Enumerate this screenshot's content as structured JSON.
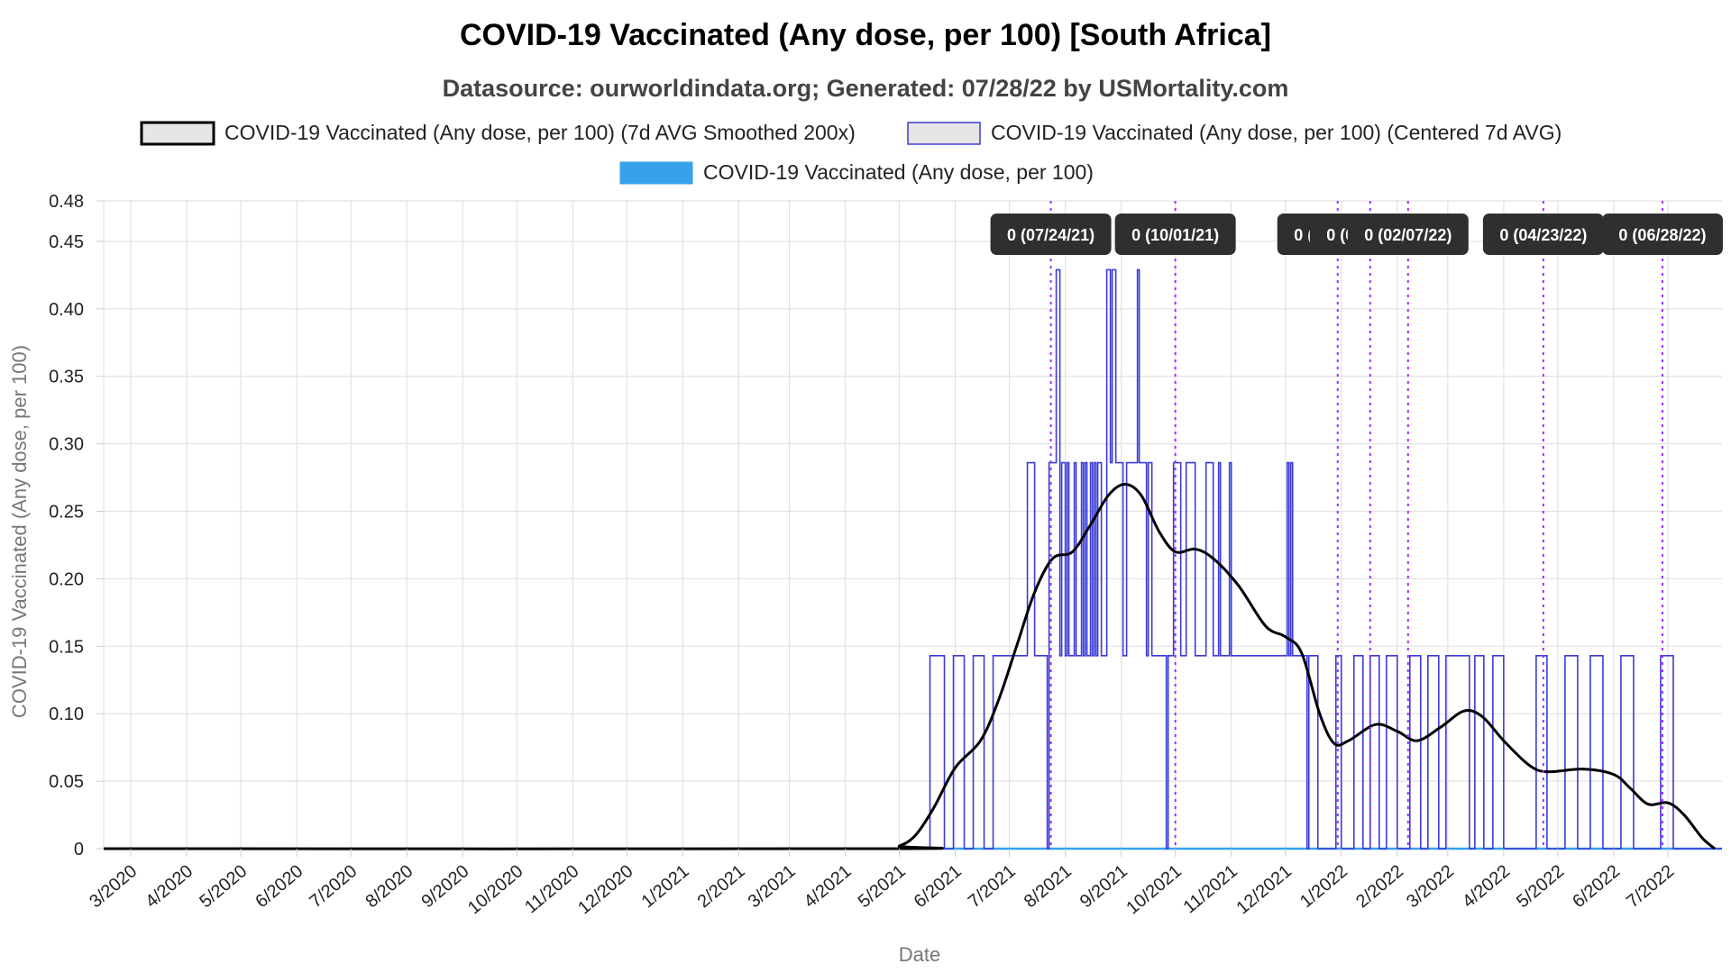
{
  "chart_data": {
    "type": "line",
    "title": "COVID-19 Vaccinated (Any dose, per 100) [South Africa]",
    "subtitle": "Datasource: ourworldindata.org; Generated: 07/28/22 by USMortality.com",
    "xlabel": "Date",
    "ylabel": "COVID-19 Vaccinated (Any dose, per 100)",
    "ylim": [
      0,
      0.48
    ],
    "xlim": [
      "2020-02-15",
      "2022-07-31"
    ],
    "yticks": [
      "0",
      "0.05",
      "0.10",
      "0.15",
      "0.20",
      "0.25",
      "0.30",
      "0.35",
      "0.40",
      "0.45",
      "0.48"
    ],
    "ytick_values": [
      0,
      0.05,
      0.1,
      0.15,
      0.2,
      0.25,
      0.3,
      0.35,
      0.4,
      0.45,
      0.48
    ],
    "xticks": [
      "3/2020",
      "4/2020",
      "5/2020",
      "6/2020",
      "7/2020",
      "8/2020",
      "9/2020",
      "10/2020",
      "11/2020",
      "12/2020",
      "1/2021",
      "2/2021",
      "3/2021",
      "4/2021",
      "5/2021",
      "6/2021",
      "7/2021",
      "8/2021",
      "9/2021",
      "10/2021",
      "11/2021",
      "12/2021",
      "1/2022",
      "2/2022",
      "3/2022",
      "4/2022",
      "5/2022",
      "6/2022",
      "7/2022"
    ],
    "xtick_dates": [
      "2020-03-01",
      "2020-04-01",
      "2020-05-01",
      "2020-06-01",
      "2020-07-01",
      "2020-08-01",
      "2020-09-01",
      "2020-10-01",
      "2020-11-01",
      "2020-12-01",
      "2021-01-01",
      "2021-02-01",
      "2021-03-01",
      "2021-04-01",
      "2021-05-01",
      "2021-06-01",
      "2021-07-01",
      "2021-08-01",
      "2021-09-01",
      "2021-10-01",
      "2021-11-01",
      "2021-12-01",
      "2022-01-01",
      "2022-02-01",
      "2022-03-01",
      "2022-04-01",
      "2022-05-01",
      "2022-06-01",
      "2022-07-01"
    ],
    "grid": true,
    "legend_position": "top-center",
    "series": [
      {
        "name": "COVID-19 Vaccinated (Any dose, per 100) (7d AVG Smoothed 200x)",
        "color": "#000000",
        "fill": "#e6e6e6",
        "points": [
          [
            "2020-02-15",
            0
          ],
          [
            "2021-04-20",
            0
          ],
          [
            "2021-05-01",
            0.002
          ],
          [
            "2021-05-10",
            0.01
          ],
          [
            "2021-05-20",
            0.03
          ],
          [
            "2021-06-01",
            0.06
          ],
          [
            "2021-06-15",
            0.08
          ],
          [
            "2021-06-25",
            0.11
          ],
          [
            "2021-07-05",
            0.15
          ],
          [
            "2021-07-15",
            0.19
          ],
          [
            "2021-07-25",
            0.215
          ],
          [
            "2021-08-05",
            0.22
          ],
          [
            "2021-08-15",
            0.24
          ],
          [
            "2021-08-25",
            0.262
          ],
          [
            "2021-09-03",
            0.27
          ],
          [
            "2021-09-12",
            0.262
          ],
          [
            "2021-09-22",
            0.235
          ],
          [
            "2021-10-01",
            0.22
          ],
          [
            "2021-10-12",
            0.222
          ],
          [
            "2021-10-22",
            0.215
          ],
          [
            "2021-11-05",
            0.195
          ],
          [
            "2021-11-20",
            0.165
          ],
          [
            "2021-12-01",
            0.157
          ],
          [
            "2021-12-10",
            0.145
          ],
          [
            "2021-12-20",
            0.1
          ],
          [
            "2021-12-28",
            0.078
          ],
          [
            "2022-01-05",
            0.08
          ],
          [
            "2022-01-20",
            0.092
          ],
          [
            "2022-02-01",
            0.087
          ],
          [
            "2022-02-12",
            0.08
          ],
          [
            "2022-02-25",
            0.09
          ],
          [
            "2022-03-10",
            0.102
          ],
          [
            "2022-03-20",
            0.098
          ],
          [
            "2022-04-01",
            0.08
          ],
          [
            "2022-04-15",
            0.062
          ],
          [
            "2022-04-25",
            0.057
          ],
          [
            "2022-05-15",
            0.059
          ],
          [
            "2022-06-01",
            0.055
          ],
          [
            "2022-06-10",
            0.045
          ],
          [
            "2022-06-20",
            0.033
          ],
          [
            "2022-07-01",
            0.034
          ],
          [
            "2022-07-10",
            0.025
          ],
          [
            "2022-07-20",
            0.008
          ],
          [
            "2022-07-27",
            0
          ]
        ]
      },
      {
        "name": "COVID-19 Vaccinated (Any dose, per 100) (Centered 7d AVG)",
        "color": "#3b3bd9",
        "fill": "#e6e6e6",
        "type": "step",
        "points": [
          [
            "2020-02-15",
            0
          ],
          [
            "2021-05-17",
            0
          ],
          [
            "2021-05-18",
            0.143
          ],
          [
            "2021-05-25",
            0.143
          ],
          [
            "2021-05-26",
            0
          ],
          [
            "2021-05-30",
            0
          ],
          [
            "2021-05-31",
            0.143
          ],
          [
            "2021-06-05",
            0.143
          ],
          [
            "2021-06-06",
            0
          ],
          [
            "2021-06-10",
            0
          ],
          [
            "2021-06-11",
            0.143
          ],
          [
            "2021-06-16",
            0.143
          ],
          [
            "2021-06-17",
            0
          ],
          [
            "2021-06-21",
            0
          ],
          [
            "2021-06-22",
            0.143
          ],
          [
            "2021-07-10",
            0.143
          ],
          [
            "2021-07-11",
            0.286
          ],
          [
            "2021-07-14",
            0.286
          ],
          [
            "2021-07-15",
            0.143
          ],
          [
            "2021-07-21",
            0.143
          ],
          [
            "2021-07-22",
            0
          ],
          [
            "2021-07-23",
            0.286
          ],
          [
            "2021-07-26",
            0.286
          ],
          [
            "2021-07-27",
            0.429
          ],
          [
            "2021-07-28",
            0.429
          ],
          [
            "2021-07-29",
            0.143
          ],
          [
            "2021-07-30",
            0.286
          ],
          [
            "2021-07-31",
            0.286
          ],
          [
            "2021-08-01",
            0.143
          ],
          [
            "2021-08-02",
            0.286
          ],
          [
            "2021-08-03",
            0.143
          ],
          [
            "2021-08-05",
            0.143
          ],
          [
            "2021-08-06",
            0.286
          ],
          [
            "2021-08-07",
            0.143
          ],
          [
            "2021-08-09",
            0.143
          ],
          [
            "2021-08-10",
            0.286
          ],
          [
            "2021-08-11",
            0.143
          ],
          [
            "2021-08-12",
            0.286
          ],
          [
            "2021-08-13",
            0.143
          ],
          [
            "2021-08-15",
            0.286
          ],
          [
            "2021-08-16",
            0.143
          ],
          [
            "2021-08-17",
            0.286
          ],
          [
            "2021-08-18",
            0.143
          ],
          [
            "2021-08-19",
            0.286
          ],
          [
            "2021-08-20",
            0.286
          ],
          [
            "2021-08-21",
            0.143
          ],
          [
            "2021-08-23",
            0.143
          ],
          [
            "2021-08-24",
            0.429
          ],
          [
            "2021-08-25",
            0.429
          ],
          [
            "2021-08-26",
            0.286
          ],
          [
            "2021-08-27",
            0.429
          ],
          [
            "2021-08-28",
            0.429
          ],
          [
            "2021-08-29",
            0.286
          ],
          [
            "2021-09-01",
            0.286
          ],
          [
            "2021-09-02",
            0.143
          ],
          [
            "2021-09-03",
            0.143
          ],
          [
            "2021-09-04",
            0.286
          ],
          [
            "2021-09-09",
            0.286
          ],
          [
            "2021-09-10",
            0.429
          ],
          [
            "2021-09-11",
            0.286
          ],
          [
            "2021-09-14",
            0.286
          ],
          [
            "2021-09-15",
            0.143
          ],
          [
            "2021-09-16",
            0.286
          ],
          [
            "2021-09-17",
            0.286
          ],
          [
            "2021-09-18",
            0.143
          ],
          [
            "2021-09-25",
            0.143
          ],
          [
            "2021-09-26",
            0
          ],
          [
            "2021-09-27",
            0.143
          ],
          [
            "2021-09-29",
            0.143
          ],
          [
            "2021-09-30",
            0.286
          ],
          [
            "2021-10-03",
            0.286
          ],
          [
            "2021-10-04",
            0.143
          ],
          [
            "2021-10-06",
            0.143
          ],
          [
            "2021-10-07",
            0.286
          ],
          [
            "2021-10-11",
            0.286
          ],
          [
            "2021-10-12",
            0.143
          ],
          [
            "2021-10-17",
            0.143
          ],
          [
            "2021-10-18",
            0.286
          ],
          [
            "2021-10-21",
            0.286
          ],
          [
            "2021-10-22",
            0.143
          ],
          [
            "2021-10-24",
            0.143
          ],
          [
            "2021-10-25",
            0.286
          ],
          [
            "2021-10-26",
            0.143
          ],
          [
            "2021-10-30",
            0.143
          ],
          [
            "2021-10-31",
            0.286
          ],
          [
            "2021-11-01",
            0.143
          ],
          [
            "2021-12-01",
            0.143
          ],
          [
            "2021-12-02",
            0.286
          ],
          [
            "2021-12-03",
            0.143
          ],
          [
            "2021-12-04",
            0.286
          ],
          [
            "2021-12-05",
            0.143
          ],
          [
            "2021-12-12",
            0.143
          ],
          [
            "2021-12-13",
            0
          ],
          [
            "2021-12-14",
            0.143
          ],
          [
            "2021-12-18",
            0.143
          ],
          [
            "2021-12-19",
            0
          ],
          [
            "2021-12-28",
            0
          ],
          [
            "2021-12-29",
            0.143
          ],
          [
            "2021-12-31",
            0.143
          ],
          [
            "2022-01-01",
            0
          ],
          [
            "2022-01-07",
            0
          ],
          [
            "2022-01-08",
            0.143
          ],
          [
            "2022-01-12",
            0.143
          ],
          [
            "2022-01-13",
            0
          ],
          [
            "2022-01-16",
            0
          ],
          [
            "2022-01-17",
            0.143
          ],
          [
            "2022-01-21",
            0.143
          ],
          [
            "2022-01-22",
            0
          ],
          [
            "2022-01-25",
            0
          ],
          [
            "2022-01-26",
            0.143
          ],
          [
            "2022-01-31",
            0.143
          ],
          [
            "2022-02-01",
            0
          ],
          [
            "2022-02-07",
            0
          ],
          [
            "2022-02-08",
            0.143
          ],
          [
            "2022-02-13",
            0.143
          ],
          [
            "2022-02-14",
            0
          ],
          [
            "2022-02-17",
            0
          ],
          [
            "2022-02-18",
            0.143
          ],
          [
            "2022-02-23",
            0.143
          ],
          [
            "2022-02-24",
            0
          ],
          [
            "2022-02-27",
            0
          ],
          [
            "2022-02-28",
            0.143
          ],
          [
            "2022-03-12",
            0.143
          ],
          [
            "2022-03-13",
            0
          ],
          [
            "2022-03-15",
            0
          ],
          [
            "2022-03-16",
            0.143
          ],
          [
            "2022-03-20",
            0.143
          ],
          [
            "2022-03-21",
            0
          ],
          [
            "2022-03-25",
            0
          ],
          [
            "2022-03-26",
            0.143
          ],
          [
            "2022-03-31",
            0.143
          ],
          [
            "2022-04-01",
            0
          ],
          [
            "2022-04-18",
            0
          ],
          [
            "2022-04-19",
            0.143
          ],
          [
            "2022-04-24",
            0.143
          ],
          [
            "2022-04-25",
            0
          ],
          [
            "2022-05-04",
            0
          ],
          [
            "2022-05-05",
            0.143
          ],
          [
            "2022-05-11",
            0.143
          ],
          [
            "2022-05-12",
            0
          ],
          [
            "2022-05-18",
            0
          ],
          [
            "2022-05-19",
            0.143
          ],
          [
            "2022-05-25",
            0.143
          ],
          [
            "2022-05-26",
            0
          ],
          [
            "2022-06-04",
            0
          ],
          [
            "2022-06-05",
            0.143
          ],
          [
            "2022-06-11",
            0.143
          ],
          [
            "2022-06-12",
            0
          ],
          [
            "2022-06-26",
            0
          ],
          [
            "2022-06-27",
            0.143
          ],
          [
            "2022-07-03",
            0.143
          ],
          [
            "2022-07-04",
            0
          ],
          [
            "2022-07-31",
            0
          ]
        ]
      },
      {
        "name": "COVID-19 Vaccinated (Any dose, per 100)",
        "color": "#36a2eb",
        "fill": "#36a2eb",
        "points": [
          [
            "2020-02-15",
            0
          ],
          [
            "2022-07-31",
            0
          ]
        ]
      }
    ],
    "annotations": [
      {
        "label": "0 (07/24/21)",
        "x": "2021-07-24"
      },
      {
        "label": "0 (10/01/21)",
        "x": "2021-10-01"
      },
      {
        "label": "0 (12/30/21)",
        "x": "2021-12-30"
      },
      {
        "label": "0 (01/17/22)",
        "x": "2022-01-17"
      },
      {
        "label": "0 (02/07/22)",
        "x": "2022-02-07"
      },
      {
        "label": "0 (04/23/22)",
        "x": "2022-04-23"
      },
      {
        "label": "0 (06/28/22)",
        "x": "2022-06-28"
      }
    ]
  }
}
